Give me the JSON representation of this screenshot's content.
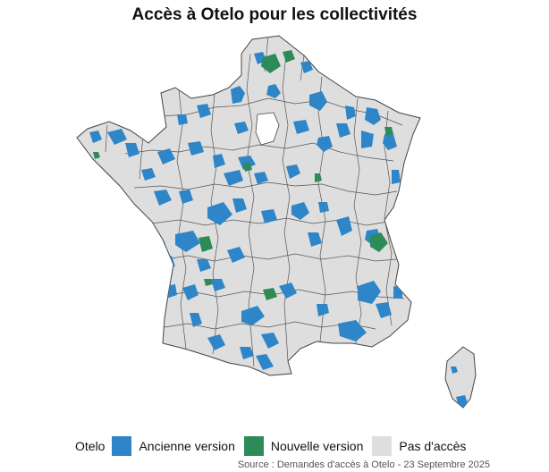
{
  "title": "Accès à Otelo pour les collectivités",
  "legend": {
    "title": "Otelo",
    "items": [
      {
        "label": "Ancienne version",
        "color": "#2e86c8"
      },
      {
        "label": "Nouvelle version",
        "color": "#2e8b57"
      },
      {
        "label": "Pas d'accès",
        "color": "#dedede"
      }
    ]
  },
  "source": "Source : Demandes d'accès à Otelo - 23 Septembre 2025",
  "colors": {
    "border": "#444444",
    "background": "#ffffff"
  }
}
